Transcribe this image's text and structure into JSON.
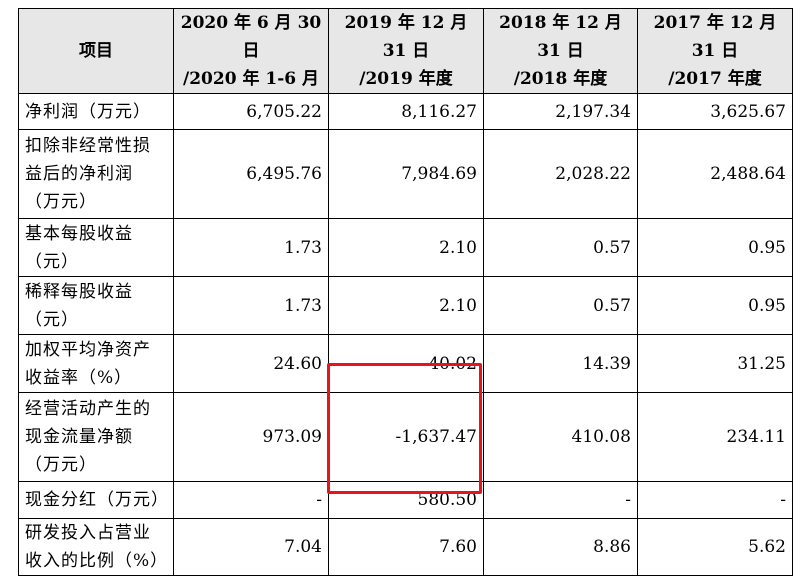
{
  "table": {
    "headers": [
      [
        "项目"
      ],
      [
        "2020 年 6 月 30 日",
        "/2020 年 1-6 月"
      ],
      [
        "2019 年 12 月 31 日",
        "/2019 年度"
      ],
      [
        "2018 年 12 月 31 日",
        "/2018 年度"
      ],
      [
        "2017 年 12 月 31 日",
        "/2017 年度"
      ]
    ],
    "rows": [
      {
        "label": [
          "净利润（万元）"
        ],
        "values": [
          "6,705.22",
          "8,116.27",
          "2,197.34",
          "3,625.67"
        ]
      },
      {
        "label": [
          "扣除非经常性损",
          "益后的净利润",
          "（万元）"
        ],
        "values": [
          "6,495.76",
          "7,984.69",
          "2,028.22",
          "2,488.64"
        ]
      },
      {
        "label": [
          "基本每股收益",
          "（元）"
        ],
        "values": [
          "1.73",
          "2.10",
          "0.57",
          "0.95"
        ]
      },
      {
        "label": [
          "稀释每股收益",
          "（元）"
        ],
        "values": [
          "1.73",
          "2.10",
          "0.57",
          "0.95"
        ]
      },
      {
        "label": [
          "加权平均净资产",
          "收益率（%）"
        ],
        "values": [
          "24.60",
          "40.02",
          "14.39",
          "31.25"
        ]
      },
      {
        "label": [
          "经营活动产生的",
          "现金流量净额",
          "（万元）"
        ],
        "values": [
          "973.09",
          "-1,637.47",
          "410.08",
          "234.11"
        ]
      },
      {
        "label": [
          "现金分红（万元）"
        ],
        "values": [
          "-",
          "580.50",
          "-",
          "-"
        ]
      },
      {
        "label": [
          "研发投入占营业",
          "收入的比例（%）"
        ],
        "values": [
          "7.04",
          "7.60",
          "8.86",
          "5.62"
        ]
      }
    ]
  },
  "highlight": {
    "color": "#e8141b"
  }
}
